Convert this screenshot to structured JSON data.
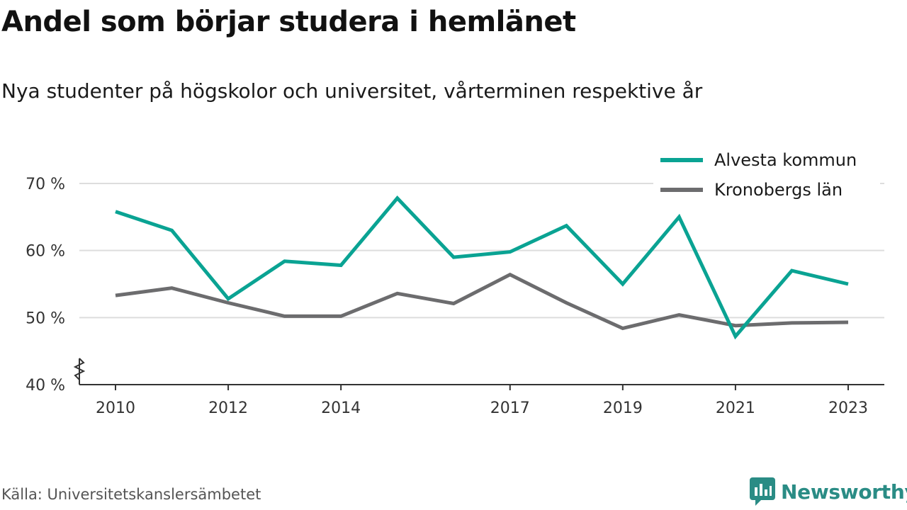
{
  "title": "Andel som börjar studera i hemlänet",
  "subtitle": "Nya studenter på högskolor och universitet, vårterminen respektive år",
  "source": "Källa: Universitetskanslersämbetet",
  "brand": "Newsworthy",
  "colors": {
    "alvesta": "#0aa393",
    "kronoberg": "#6c6c6e",
    "grid": "#dddddd",
    "axis": "#333333",
    "brand": "#2a8c85"
  },
  "chart_data": {
    "type": "line",
    "x": [
      2010,
      2011,
      2012,
      2013,
      2014,
      2015,
      2016,
      2017,
      2018,
      2019,
      2020,
      2021,
      2022,
      2023
    ],
    "x_ticks": [
      2010,
      2012,
      2014,
      2017,
      2019,
      2021,
      2023
    ],
    "x_tick_labels": [
      "2010",
      "2012",
      "2014",
      "2017",
      "2019",
      "2021",
      "2023"
    ],
    "y_ticks": [
      40,
      50,
      60,
      70
    ],
    "y_tick_labels": [
      "40 %",
      "50 %",
      "60 %",
      "70 %"
    ],
    "ylim": [
      40,
      70
    ],
    "xlim": [
      2010,
      2023
    ],
    "grid": true,
    "axis_break": true,
    "legend_position": "top-right",
    "series": [
      {
        "name": "Alvesta kommun",
        "color": "#0aa393",
        "values": [
          65.8,
          63.0,
          52.8,
          58.4,
          57.8,
          67.8,
          59.0,
          59.8,
          63.7,
          55.0,
          65.0,
          47.2,
          57.0,
          55.0
        ]
      },
      {
        "name": "Kronobergs län",
        "color": "#6c6c6e",
        "values": [
          53.3,
          54.4,
          52.2,
          50.2,
          50.2,
          53.6,
          52.1,
          56.4,
          52.2,
          48.4,
          50.4,
          48.8,
          49.2,
          49.3
        ]
      }
    ]
  }
}
